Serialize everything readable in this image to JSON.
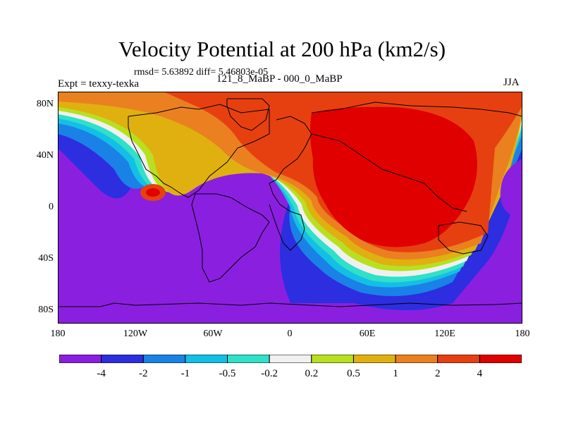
{
  "title": "Velocity Potential at 200 hPa (km2/s)",
  "stats": "rmsd= 5.63892 diff= 5.46803e-05",
  "experiment": "Expt = texxy-texka",
  "runs": "121_8_MaBP - 000_0_MaBP",
  "season": "JJA",
  "lat_ticks": [
    "80N",
    "40N",
    "0",
    "40S",
    "80S"
  ],
  "lon_ticks": [
    "180",
    "120W",
    "60W",
    "0",
    "60E",
    "120E",
    "180"
  ],
  "colorbar": {
    "colors": [
      "#8a1fe0",
      "#2c2ee0",
      "#1a82e6",
      "#14bfe6",
      "#30e0c8",
      "#f0f0f0",
      "#b8e020",
      "#e0b010",
      "#ea8020",
      "#e64010",
      "#e00000"
    ],
    "labels": [
      "-4",
      "-2",
      "-1",
      "-0.5",
      "-0.2",
      "0.2",
      "0.5",
      "1",
      "2",
      "4"
    ]
  }
}
